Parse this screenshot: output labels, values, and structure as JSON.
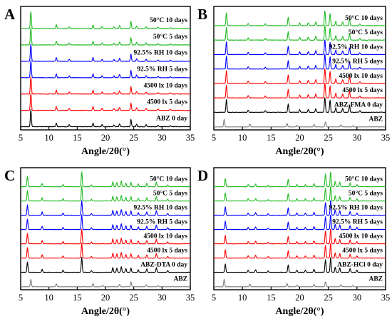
{
  "chart_data": [
    {
      "type": "line",
      "panel": "A",
      "xlabel": "Angle/2θ(°)",
      "xlim": [
        5,
        35
      ],
      "xticks": [
        5,
        10,
        15,
        20,
        25,
        30,
        35
      ],
      "grid": false,
      "peaks": [
        {
          "x": 6.8,
          "h": 1.0
        },
        {
          "x": 11.3,
          "h": 0.22
        },
        {
          "x": 13.6,
          "h": 0.12
        },
        {
          "x": 17.8,
          "h": 0.22
        },
        {
          "x": 19.4,
          "h": 0.12
        },
        {
          "x": 21.5,
          "h": 0.1
        },
        {
          "x": 22.5,
          "h": 0.18
        },
        {
          "x": 24.5,
          "h": 0.42
        },
        {
          "x": 25.5,
          "h": 0.15
        },
        {
          "x": 27.2,
          "h": 0.12
        },
        {
          "x": 29.3,
          "h": 0.08
        },
        {
          "x": 31.5,
          "h": 0.06
        }
      ],
      "series": [
        {
          "name": "ABZ 0 day",
          "color": "#000000"
        },
        {
          "name": "4500 lx 5 days",
          "color": "#ff0000"
        },
        {
          "name": "4500 lx 10 days",
          "color": "#ff0000"
        },
        {
          "name": "92.5% RH 5 days",
          "color": "#0000ff"
        },
        {
          "name": "92.5% RH 10 days",
          "color": "#0000ff"
        },
        {
          "name": "50°C 5 days",
          "color": "#22bb22"
        },
        {
          "name": "50°C 10 days",
          "color": "#22bb22"
        }
      ]
    },
    {
      "type": "line",
      "panel": "B",
      "xlabel": "Angle/2θ(°)",
      "xlim": [
        5,
        35
      ],
      "xticks": [
        5,
        10,
        15,
        20,
        25,
        30,
        35
      ],
      "grid": false,
      "peaks": [
        {
          "x": 7.2,
          "h": 0.85
        },
        {
          "x": 11.0,
          "h": 0.15
        },
        {
          "x": 14.0,
          "h": 0.12
        },
        {
          "x": 18.0,
          "h": 0.55
        },
        {
          "x": 20.0,
          "h": 0.18
        },
        {
          "x": 21.5,
          "h": 0.2
        },
        {
          "x": 22.8,
          "h": 0.25
        },
        {
          "x": 24.4,
          "h": 1.0
        },
        {
          "x": 25.3,
          "h": 0.8
        },
        {
          "x": 26.3,
          "h": 0.3
        },
        {
          "x": 27.5,
          "h": 0.25
        },
        {
          "x": 28.7,
          "h": 0.45
        },
        {
          "x": 30.5,
          "h": 0.12
        }
      ],
      "abz_peaks": [
        {
          "x": 6.8,
          "h": 0.9
        },
        {
          "x": 11.3,
          "h": 0.35
        },
        {
          "x": 17.8,
          "h": 0.4
        },
        {
          "x": 19.5,
          "h": 0.2
        },
        {
          "x": 22.5,
          "h": 0.3
        },
        {
          "x": 24.5,
          "h": 0.6
        },
        {
          "x": 27.2,
          "h": 0.25
        },
        {
          "x": 29.3,
          "h": 0.15
        }
      ],
      "series": [
        {
          "name": "ABZ",
          "color": "#808080"
        },
        {
          "name": "ABZ-FMA 0 day",
          "color": "#000000"
        },
        {
          "name": "4500 lx 5 days",
          "color": "#ff0000"
        },
        {
          "name": "4500 lx 10 days",
          "color": "#ff0000"
        },
        {
          "name": "92.5% RH 5 days",
          "color": "#0000ff"
        },
        {
          "name": "92.5% RH 10 days",
          "color": "#0000ff"
        },
        {
          "name": "50°C 5 days",
          "color": "#22bb22"
        },
        {
          "name": "50°C 10 days",
          "color": "#22bb22"
        }
      ]
    },
    {
      "type": "line",
      "panel": "C",
      "xlabel": "Angle/2θ(°)",
      "xlim": [
        5,
        35
      ],
      "xticks": [
        5,
        10,
        15,
        20,
        25,
        30,
        35
      ],
      "grid": false,
      "peaks": [
        {
          "x": 6.2,
          "h": 0.7
        },
        {
          "x": 8.8,
          "h": 0.22
        },
        {
          "x": 12.5,
          "h": 0.15
        },
        {
          "x": 15.8,
          "h": 1.0
        },
        {
          "x": 17.5,
          "h": 0.12
        },
        {
          "x": 21.3,
          "h": 0.32
        },
        {
          "x": 22.0,
          "h": 0.28
        },
        {
          "x": 22.8,
          "h": 0.38
        },
        {
          "x": 23.6,
          "h": 0.25
        },
        {
          "x": 24.5,
          "h": 0.28
        },
        {
          "x": 25.8,
          "h": 0.18
        },
        {
          "x": 27.3,
          "h": 0.22
        },
        {
          "x": 29.0,
          "h": 0.3
        },
        {
          "x": 31.0,
          "h": 0.12
        }
      ],
      "abz_peaks": [
        {
          "x": 6.8,
          "h": 0.9
        },
        {
          "x": 11.3,
          "h": 0.35
        },
        {
          "x": 17.8,
          "h": 0.4
        },
        {
          "x": 19.5,
          "h": 0.2
        },
        {
          "x": 22.5,
          "h": 0.3
        },
        {
          "x": 24.5,
          "h": 0.6
        },
        {
          "x": 27.2,
          "h": 0.25
        },
        {
          "x": 29.3,
          "h": 0.15
        }
      ],
      "series": [
        {
          "name": "ABZ",
          "color": "#808080"
        },
        {
          "name": "ABZ-DTA 0 day",
          "color": "#000000"
        },
        {
          "name": "4500 lx 5 days",
          "color": "#ff0000"
        },
        {
          "name": "4500 lx 10 days",
          "color": "#ff0000"
        },
        {
          "name": "92.5% RH 5 days",
          "color": "#0000ff"
        },
        {
          "name": "92.5% RH 10 days",
          "color": "#0000ff"
        },
        {
          "name": "50°C 5 days",
          "color": "#22bb22"
        },
        {
          "name": "50°C 10 days",
          "color": "#22bb22"
        }
      ]
    },
    {
      "type": "line",
      "panel": "D",
      "xlabel": "Angle/2θ(°)",
      "xlim": [
        5,
        35
      ],
      "xticks": [
        5,
        10,
        15,
        20,
        25,
        30,
        35
      ],
      "grid": false,
      "peaks": [
        {
          "x": 7.0,
          "h": 0.55
        },
        {
          "x": 11.0,
          "h": 0.15
        },
        {
          "x": 12.3,
          "h": 0.18
        },
        {
          "x": 14.5,
          "h": 0.1
        },
        {
          "x": 18.0,
          "h": 0.5
        },
        {
          "x": 19.5,
          "h": 0.15
        },
        {
          "x": 21.0,
          "h": 0.15
        },
        {
          "x": 22.5,
          "h": 0.2
        },
        {
          "x": 24.5,
          "h": 0.85
        },
        {
          "x": 25.4,
          "h": 1.0
        },
        {
          "x": 26.2,
          "h": 0.35
        },
        {
          "x": 27.0,
          "h": 0.3
        },
        {
          "x": 28.8,
          "h": 0.25
        },
        {
          "x": 30.0,
          "h": 0.15
        }
      ],
      "abz_peaks": [
        {
          "x": 6.8,
          "h": 0.9
        },
        {
          "x": 11.3,
          "h": 0.35
        },
        {
          "x": 17.8,
          "h": 0.4
        },
        {
          "x": 19.5,
          "h": 0.2
        },
        {
          "x": 22.5,
          "h": 0.3
        },
        {
          "x": 24.5,
          "h": 0.6
        },
        {
          "x": 27.2,
          "h": 0.25
        },
        {
          "x": 29.3,
          "h": 0.15
        }
      ],
      "series": [
        {
          "name": "ABZ",
          "color": "#808080"
        },
        {
          "name": "ABZ-HCl 0 day",
          "color": "#000000"
        },
        {
          "name": "4500 lx 5 days",
          "color": "#ff0000"
        },
        {
          "name": "4500 lx 10 days",
          "color": "#ff0000"
        },
        {
          "name": "92.5% RH 5 days",
          "color": "#0000ff"
        },
        {
          "name": "92.5% RH 10 days",
          "color": "#0000ff"
        },
        {
          "name": "50°C 5 days",
          "color": "#22bb22"
        },
        {
          "name": "50°C 10 days",
          "color": "#22bb22"
        }
      ]
    }
  ]
}
